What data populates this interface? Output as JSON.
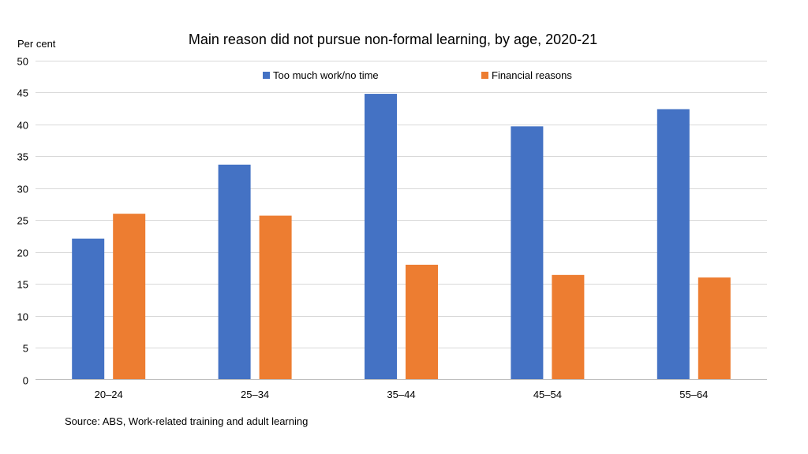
{
  "chart_data": {
    "type": "bar",
    "title": "Main reason did not pursue non-formal learning, by age, 2020-21",
    "ylabel": "Per cent",
    "xlabel": "",
    "categories": [
      "20–24",
      "25–34",
      "35–44",
      "45–54",
      "55–64"
    ],
    "ylim": [
      0,
      50
    ],
    "yticks": [
      0,
      5,
      10,
      15,
      20,
      25,
      30,
      35,
      40,
      45,
      50
    ],
    "grid": true,
    "legend_position": "top",
    "series": [
      {
        "name": "Too much work/no time",
        "color": "#4472c4",
        "values": [
          22.1,
          33.7,
          44.8,
          39.7,
          42.4
        ]
      },
      {
        "name": "Financial reasons",
        "color": "#ed7d31",
        "values": [
          26.0,
          25.7,
          18.0,
          16.4,
          16.0
        ]
      }
    ],
    "source": "Source: ABS, Work-related training and adult learning"
  }
}
